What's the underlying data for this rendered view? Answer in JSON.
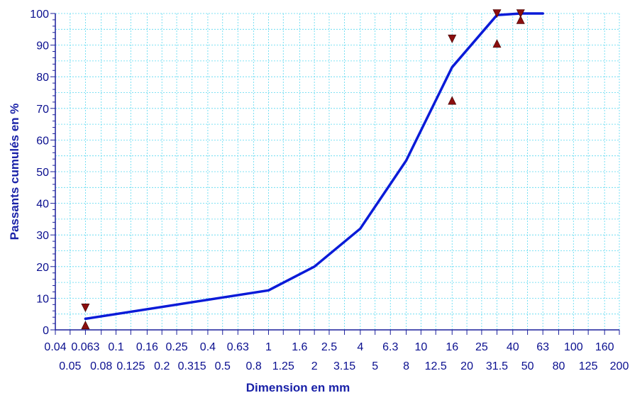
{
  "colors": {
    "curve": "#0a1bd8",
    "grid": "#58d8f0",
    "axis": "#1a1f9c",
    "text": "#0a0f8f",
    "marker": "#8b0f0f"
  },
  "chart_data": {
    "type": "line",
    "xscale": "log",
    "xlim": [
      0.04,
      200
    ],
    "ylim": [
      0,
      100
    ],
    "xlabel": "Dimension en mm",
    "ylabel": "Passants cumulés en %",
    "grid": true,
    "legend": "none",
    "x_ticks_row1": [
      "0.04",
      "0.063",
      "0.1",
      "0.16",
      "0.25",
      "0.4",
      "0.63",
      "1",
      "1.6",
      "2.5",
      "4",
      "6.3",
      "10",
      "16",
      "25",
      "40",
      "63",
      "100",
      "160"
    ],
    "x_ticks_row2": [
      "0.05",
      "0.08",
      "0.125",
      "0.2",
      "0.315",
      "0.5",
      "0.8",
      "1.25",
      "2",
      "3.15",
      "5",
      "8",
      "12.5",
      "20",
      "31.5",
      "50",
      "80",
      "125",
      "200"
    ],
    "y_ticks": [
      "0",
      "10",
      "20",
      "30",
      "40",
      "50",
      "60",
      "70",
      "80",
      "90",
      "100"
    ],
    "series": [
      {
        "points": [
          {
            "x": 0.063,
            "y": 3.5
          },
          {
            "x": 1,
            "y": 12.5
          },
          {
            "x": 2,
            "y": 20
          },
          {
            "x": 4,
            "y": 32
          },
          {
            "x": 8,
            "y": 53.5
          },
          {
            "x": 16,
            "y": 83
          },
          {
            "x": 31.5,
            "y": 99.5
          },
          {
            "x": 45,
            "y": 100
          },
          {
            "x": 63,
            "y": 100
          }
        ]
      }
    ],
    "limit_markers": [
      {
        "x": 0.063,
        "y": 7,
        "kind": "upper"
      },
      {
        "x": 0.063,
        "y": 1.5,
        "kind": "lower"
      },
      {
        "x": 16,
        "y": 92,
        "kind": "upper"
      },
      {
        "x": 16,
        "y": 72.5,
        "kind": "lower"
      },
      {
        "x": 31.5,
        "y": 100,
        "kind": "upper"
      },
      {
        "x": 31.5,
        "y": 90.5,
        "kind": "lower"
      },
      {
        "x": 45,
        "y": 100,
        "kind": "upper"
      },
      {
        "x": 45,
        "y": 98,
        "kind": "lower"
      }
    ]
  }
}
